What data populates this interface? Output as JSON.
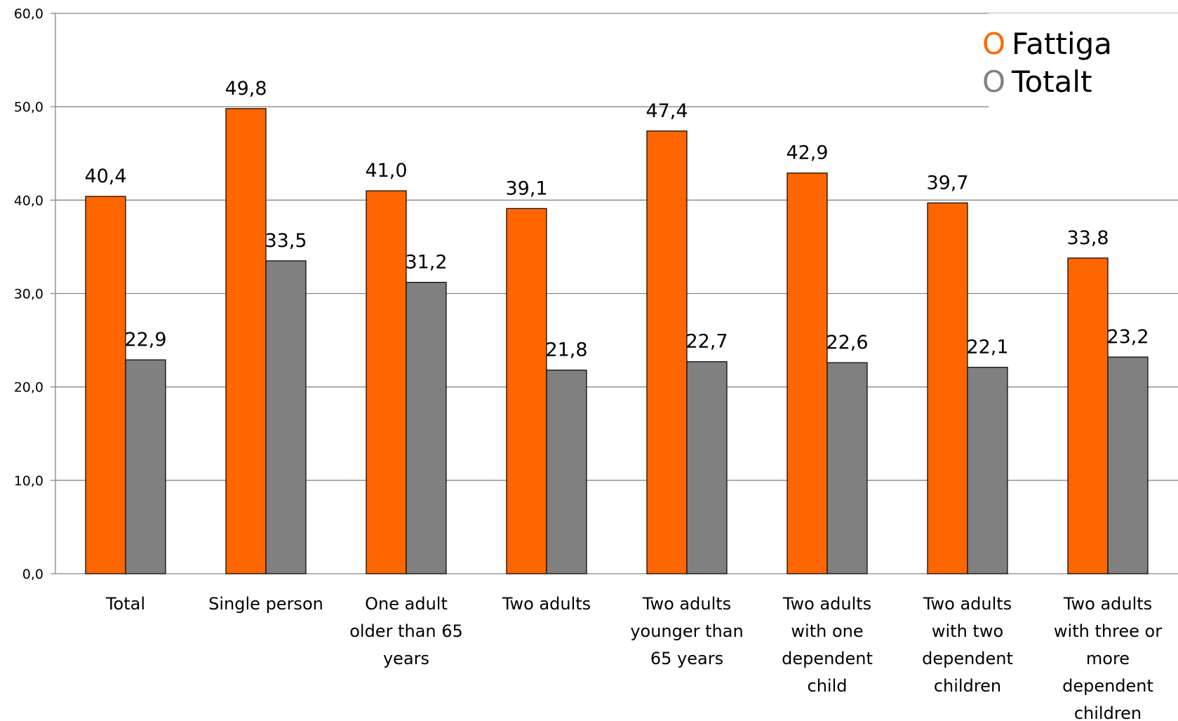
{
  "chart_data": {
    "type": "bar",
    "categories": [
      [
        "Total"
      ],
      [
        "Single person"
      ],
      [
        "One adult",
        "older than 65",
        "years"
      ],
      [
        "Two adults"
      ],
      [
        "Two adults",
        "younger than",
        "65 years"
      ],
      [
        "Two adults",
        "with one",
        "dependent",
        "child"
      ],
      [
        "Two adults",
        "with two",
        "dependent",
        "children"
      ],
      [
        "Two adults",
        "with three or",
        "more",
        "dependent",
        "children"
      ]
    ],
    "series": [
      {
        "name": "Fattiga",
        "color": "#FF6600",
        "values": [
          40.4,
          49.8,
          41.0,
          39.1,
          47.4,
          42.9,
          39.7,
          33.8
        ],
        "labels": [
          "40,4",
          "49,8",
          "41,0",
          "39,1",
          "47,4",
          "42,9",
          "39,7",
          "33,8"
        ]
      },
      {
        "name": "Totalt",
        "color": "#808080",
        "values": [
          22.9,
          33.5,
          31.2,
          21.8,
          22.7,
          22.6,
          22.1,
          23.2
        ],
        "labels": [
          "22,9",
          "33,5",
          "31,2",
          "21,8",
          "22,7",
          "22,6",
          "22,1",
          "23,2"
        ]
      }
    ],
    "ylim": [
      0,
      60
    ],
    "yticks": [
      0,
      10,
      20,
      30,
      40,
      50,
      60
    ],
    "ytick_labels": [
      "0,0",
      "10,0",
      "20,0",
      "30,0",
      "40,0",
      "50,0",
      "60,0"
    ],
    "grid": true,
    "legend": {
      "position": "top-right",
      "marker": "O",
      "items": [
        "Fattiga",
        "Totalt"
      ]
    },
    "title": "",
    "xlabel": "",
    "ylabel": ""
  }
}
